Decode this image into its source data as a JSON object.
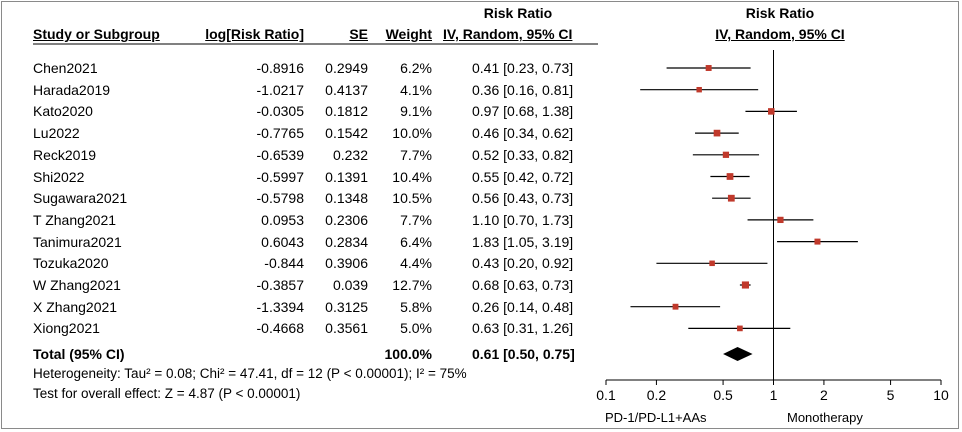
{
  "header": {
    "group_left": "Risk Ratio",
    "group_right": "Risk Ratio",
    "col_study": "Study or Subgroup",
    "col_logrr": "log[Risk Ratio]",
    "col_se": "SE",
    "col_weight": "Weight",
    "col_ci": "IV, Random, 95% CI",
    "col_plot": "IV, Random, 95% CI"
  },
  "studies": [
    {
      "name": "Chen2021",
      "logrr": "-0.8916",
      "se": "0.2949",
      "weight": "6.2%",
      "ci": "0.41 [0.23, 0.73]"
    },
    {
      "name": "Harada2019",
      "logrr": "-1.0217",
      "se": "0.4137",
      "weight": "4.1%",
      "ci": "0.36 [0.16, 0.81]"
    },
    {
      "name": "Kato2020",
      "logrr": "-0.0305",
      "se": "0.1812",
      "weight": "9.1%",
      "ci": "0.97 [0.68, 1.38]"
    },
    {
      "name": "Lu2022",
      "logrr": "-0.7765",
      "se": "0.1542",
      "weight": "10.0%",
      "ci": "0.46 [0.34, 0.62]"
    },
    {
      "name": "Reck2019",
      "logrr": "-0.6539",
      "se": "0.232",
      "weight": "7.7%",
      "ci": "0.52 [0.33, 0.82]"
    },
    {
      "name": "Shi2022",
      "logrr": "-0.5997",
      "se": "0.1391",
      "weight": "10.4%",
      "ci": "0.55 [0.42, 0.72]"
    },
    {
      "name": "Sugawara2021",
      "logrr": "-0.5798",
      "se": "0.1348",
      "weight": "10.5%",
      "ci": "0.56 [0.43, 0.73]"
    },
    {
      "name": "T Zhang2021",
      "logrr": "0.0953",
      "se": "0.2306",
      "weight": "7.7%",
      "ci": "1.10 [0.70, 1.73]"
    },
    {
      "name": "Tanimura2021",
      "logrr": "0.6043",
      "se": "0.2834",
      "weight": "6.4%",
      "ci": "1.83 [1.05, 3.19]"
    },
    {
      "name": "Tozuka2020",
      "logrr": "-0.844",
      "se": "0.3906",
      "weight": "4.4%",
      "ci": "0.43 [0.20, 0.92]"
    },
    {
      "name": "W Zhang2021",
      "logrr": "-0.3857",
      "se": "0.039",
      "weight": "12.7%",
      "ci": "0.68 [0.63, 0.73]"
    },
    {
      "name": "X Zhang2021",
      "logrr": "-1.3394",
      "se": "0.3125",
      "weight": "5.8%",
      "ci": "0.26 [0.14, 0.48]"
    },
    {
      "name": "Xiong2021",
      "logrr": "-0.4668",
      "se": "0.3561",
      "weight": "5.0%",
      "ci": "0.63 [0.31, 1.26]"
    }
  ],
  "total": {
    "label": "Total (95% CI)",
    "weight": "100.0%",
    "ci": "0.61 [0.50, 0.75]"
  },
  "heterogeneity": "Heterogeneity: Tau² = 0.08; Chi² = 47.41, df = 12 (P < 0.00001); I² = 75%",
  "overall_effect": "Test for overall effect: Z = 4.87 (P < 0.00001)",
  "axis": {
    "favours_left": "PD-1/PD-L1+AAs",
    "favours_right": "Monotherapy"
  },
  "colors": {
    "square": "#c0392b",
    "line": "#000000",
    "diamond": "#000000"
  },
  "chart_data": {
    "type": "forest",
    "scale": "log",
    "xlim": [
      0.1,
      10
    ],
    "ticks": [
      {
        "value": 0.1,
        "label": "0.1"
      },
      {
        "value": 0.2,
        "label": "0.2"
      },
      {
        "value": 0.5,
        "label": "0.5"
      },
      {
        "value": 1,
        "label": "1"
      },
      {
        "value": 2,
        "label": "2"
      },
      {
        "value": 5,
        "label": "5"
      },
      {
        "value": 10,
        "label": "10"
      }
    ],
    "studies": [
      {
        "name": "Chen2021",
        "rr": 0.41,
        "lo": 0.23,
        "hi": 0.73,
        "weight": 6.2
      },
      {
        "name": "Harada2019",
        "rr": 0.36,
        "lo": 0.16,
        "hi": 0.81,
        "weight": 4.1
      },
      {
        "name": "Kato2020",
        "rr": 0.97,
        "lo": 0.68,
        "hi": 1.38,
        "weight": 9.1
      },
      {
        "name": "Lu2022",
        "rr": 0.46,
        "lo": 0.34,
        "hi": 0.62,
        "weight": 10.0
      },
      {
        "name": "Reck2019",
        "rr": 0.52,
        "lo": 0.33,
        "hi": 0.82,
        "weight": 7.7
      },
      {
        "name": "Shi2022",
        "rr": 0.55,
        "lo": 0.42,
        "hi": 0.72,
        "weight": 10.4
      },
      {
        "name": "Sugawara2021",
        "rr": 0.56,
        "lo": 0.43,
        "hi": 0.73,
        "weight": 10.5
      },
      {
        "name": "T Zhang2021",
        "rr": 1.1,
        "lo": 0.7,
        "hi": 1.73,
        "weight": 7.7
      },
      {
        "name": "Tanimura2021",
        "rr": 1.83,
        "lo": 1.05,
        "hi": 3.19,
        "weight": 6.4
      },
      {
        "name": "Tozuka2020",
        "rr": 0.43,
        "lo": 0.2,
        "hi": 0.92,
        "weight": 4.4
      },
      {
        "name": "W Zhang2021",
        "rr": 0.68,
        "lo": 0.63,
        "hi": 0.73,
        "weight": 12.7
      },
      {
        "name": "X Zhang2021",
        "rr": 0.26,
        "lo": 0.14,
        "hi": 0.48,
        "weight": 5.8
      },
      {
        "name": "Xiong2021",
        "rr": 0.63,
        "lo": 0.31,
        "hi": 1.26,
        "weight": 5.0
      }
    ],
    "pooled": {
      "rr": 0.61,
      "lo": 0.5,
      "hi": 0.75
    }
  }
}
